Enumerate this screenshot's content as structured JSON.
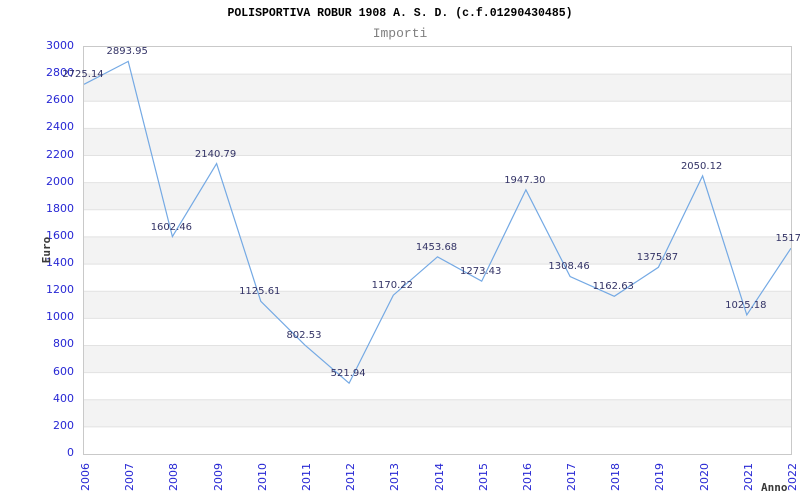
{
  "title": "POLISPORTIVA ROBUR 1908 A. S. D. (c.f.01290430485)",
  "subtitle": "Importi",
  "chart_data": {
    "type": "line",
    "x": [
      "2006",
      "2007",
      "2008",
      "2009",
      "2010",
      "2011",
      "2012",
      "2013",
      "2014",
      "2015",
      "2016",
      "2017",
      "2018",
      "2019",
      "2020",
      "2021",
      "2022"
    ],
    "series": [
      {
        "name": "Importi",
        "values": [
          2725.14,
          2893.95,
          1602.46,
          2140.79,
          1125.61,
          802.53,
          521.94,
          1170.22,
          1453.68,
          1273.43,
          1947.3,
          1308.46,
          1162.63,
          1375.87,
          2050.12,
          1025.18,
          1517.0
        ],
        "point_labels": [
          "2725.14",
          "2893.95",
          "1602.46",
          "2140.79",
          "1125.61",
          "802.53",
          "521.94",
          "1170.22",
          "1453.68",
          "1273.43",
          "1947.30",
          "1308.46",
          "1162.63",
          "1375.87",
          "2050.12",
          "1025.18",
          "1517.0"
        ]
      }
    ],
    "xlabel": "Anno",
    "ylabel": "Euro",
    "ylim": [
      0,
      3000
    ],
    "ytick_step": 200,
    "grid": "horizontal",
    "background_bands": "alternating gray stripes every 200 units",
    "legend_position": "none",
    "markers": "none"
  },
  "colors": {
    "accent_line": "#74a9e4",
    "tick_text": "#2727d4",
    "point_label_text": "#333366",
    "band_fill": "#f3f3f3",
    "grid_line": "#e2e2e2",
    "plot_border": "#c9c9c9",
    "title_text": "#000000",
    "subtitle_text": "#808080",
    "axis_title_text": "#3a3a3a"
  }
}
